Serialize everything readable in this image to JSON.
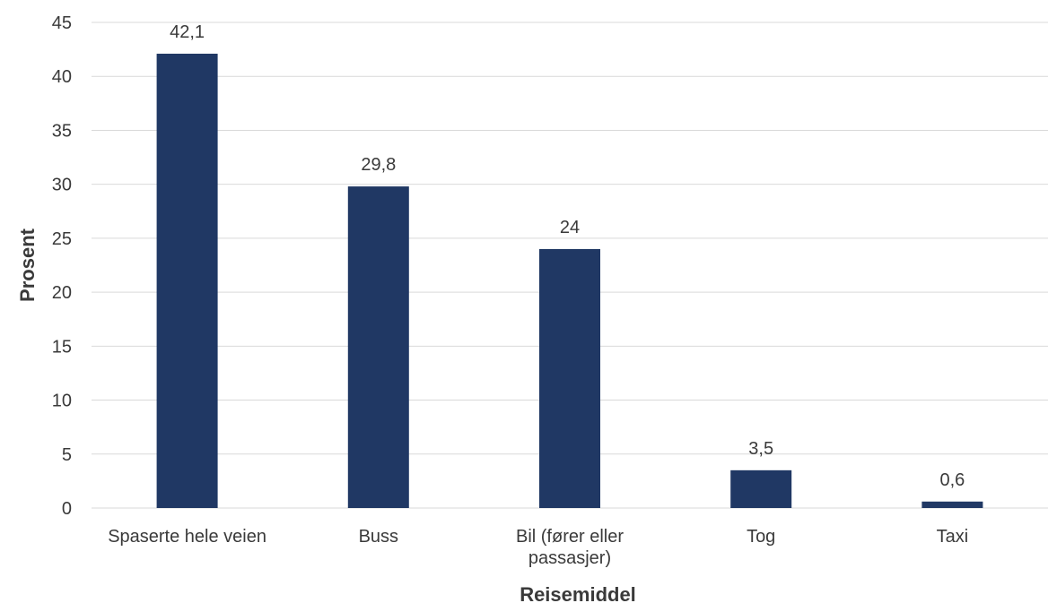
{
  "chart_data": {
    "type": "bar",
    "categories": [
      "Spaserte hele veien",
      "Buss",
      "Bil (fører eller passasjer)",
      "Tog",
      "Taxi"
    ],
    "category_lines": [
      [
        "Spaserte hele veien"
      ],
      [
        "Buss"
      ],
      [
        "Bil (fører eller",
        "passasjer)"
      ],
      [
        "Tog"
      ],
      [
        "Taxi"
      ]
    ],
    "values": [
      42.1,
      29.8,
      24,
      3.5,
      0.6
    ],
    "data_labels": [
      "42,1",
      "29,8",
      "24",
      "3,5",
      "0,6"
    ],
    "title": "",
    "xlabel": "Reisemiddel",
    "ylabel": "Prosent",
    "ylim": [
      0,
      45
    ],
    "yticks": [
      0,
      5,
      10,
      15,
      20,
      25,
      30,
      35,
      40,
      45
    ],
    "grid": true,
    "bar_color": "#203864"
  }
}
